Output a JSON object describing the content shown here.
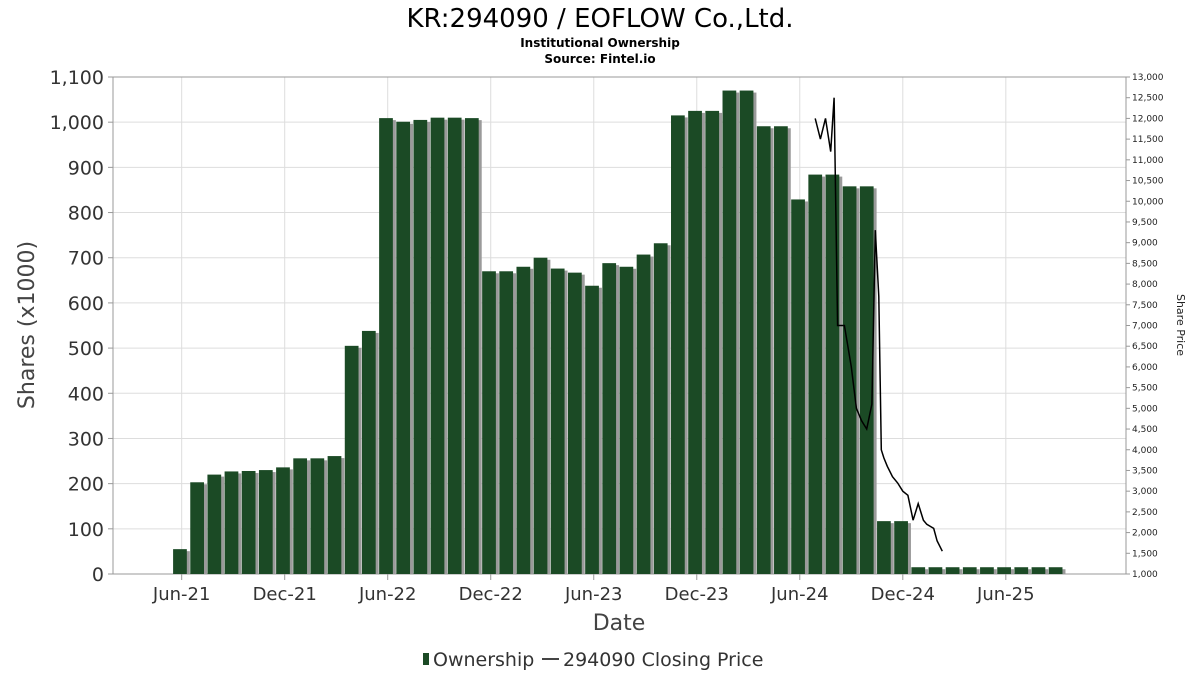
{
  "chart_data": {
    "type": "bar",
    "title": "KR:294090 / EOFLOW Co.,Ltd.",
    "subtitle": "Institutional Ownership",
    "source": "Source: Fintel.io",
    "xlabel": "Date",
    "ylabel": "Shares (x1000)",
    "ylabel_right": "Share Price",
    "ylim": [
      0,
      1100
    ],
    "ylim_right": [
      1000,
      13000
    ],
    "grid": true,
    "bar_color": "#1b4a25",
    "line_color": "#000000",
    "y_ticks": [
      "0",
      "100",
      "200",
      "300",
      "400",
      "500",
      "600",
      "700",
      "800",
      "900",
      "1,000",
      "1,100"
    ],
    "y_right_ticks": [
      "1,000",
      "1,500",
      "2,000",
      "2,500",
      "3,000",
      "3,500",
      "4,000",
      "4,500",
      "5,000",
      "5,500",
      "6,000",
      "6,500",
      "7,000",
      "7,500",
      "8,000",
      "8,500",
      "9,000",
      "9,500",
      "10,000",
      "10,500",
      "11,000",
      "11,500",
      "12,000",
      "12,500",
      "13,000"
    ],
    "x_ticks": [
      {
        "label": "Jun-21",
        "m": 5
      },
      {
        "label": "Dec-21",
        "m": 11
      },
      {
        "label": "Jun-22",
        "m": 17
      },
      {
        "label": "Dec-22",
        "m": 23
      },
      {
        "label": "Jun-23",
        "m": 29
      },
      {
        "label": "Dec-23",
        "m": 35
      },
      {
        "label": "Jun-24",
        "m": 41
      },
      {
        "label": "Dec-24",
        "m": 47
      },
      {
        "label": "Jun-25",
        "m": 53
      }
    ],
    "series": [
      {
        "name": "Ownership",
        "type": "bar",
        "x": [
          4.9,
          5.9,
          6.9,
          7.9,
          8.9,
          9.9,
          10.9,
          11.9,
          12.9,
          13.9,
          14.9,
          15.9,
          16.9,
          17.9,
          18.9,
          19.9,
          20.9,
          21.9,
          22.9,
          23.9,
          24.9,
          25.9,
          26.9,
          27.9,
          28.9,
          29.9,
          30.9,
          31.9,
          32.9,
          33.9,
          34.9,
          35.9,
          36.9,
          37.9,
          38.9,
          39.9,
          40.9,
          41.9,
          42.9,
          43.9,
          44.9,
          45.9,
          46.9,
          47.9,
          48.9,
          49.9,
          50.9,
          51.9,
          52.9,
          53.9,
          54.9,
          55.9
        ],
        "values": [
          55,
          203,
          220,
          227,
          228,
          230,
          236,
          256,
          256,
          261,
          505,
          538,
          1009,
          1001,
          1005,
          1010,
          1010,
          1009,
          670,
          670,
          680,
          700,
          676,
          667,
          638,
          688,
          680,
          707,
          732,
          1015,
          1025,
          1025,
          1070,
          1070,
          991,
          991,
          829,
          884,
          884,
          858,
          858,
          117,
          117,
          15,
          15,
          15,
          15,
          15,
          15,
          15,
          15,
          15
        ]
      },
      {
        "name": "294090 Closing Price",
        "type": "line",
        "x": [
          41.9,
          42.2,
          42.5,
          42.8,
          43.0,
          43.2,
          43.6,
          44.0,
          44.3,
          44.6,
          44.9,
          45.2,
          45.4,
          45.6,
          45.75,
          45.9,
          46.1,
          46.4,
          46.7,
          47.0,
          47.3,
          47.6,
          47.9,
          48.2,
          48.4,
          48.6,
          48.8,
          49.0,
          49.3
        ],
        "values": [
          12000,
          11500,
          12000,
          11200,
          12500,
          7000,
          7000,
          6000,
          5000,
          4700,
          4500,
          5100,
          9300,
          7700,
          4000,
          3800,
          3600,
          3350,
          3200,
          3000,
          2900,
          2300,
          2700,
          2300,
          2200,
          2150,
          2100,
          1800,
          1550
        ]
      }
    ],
    "legend": {
      "placement": "bottom-center",
      "ownership_label": "Ownership",
      "price_label": "294090 Closing Price"
    }
  }
}
